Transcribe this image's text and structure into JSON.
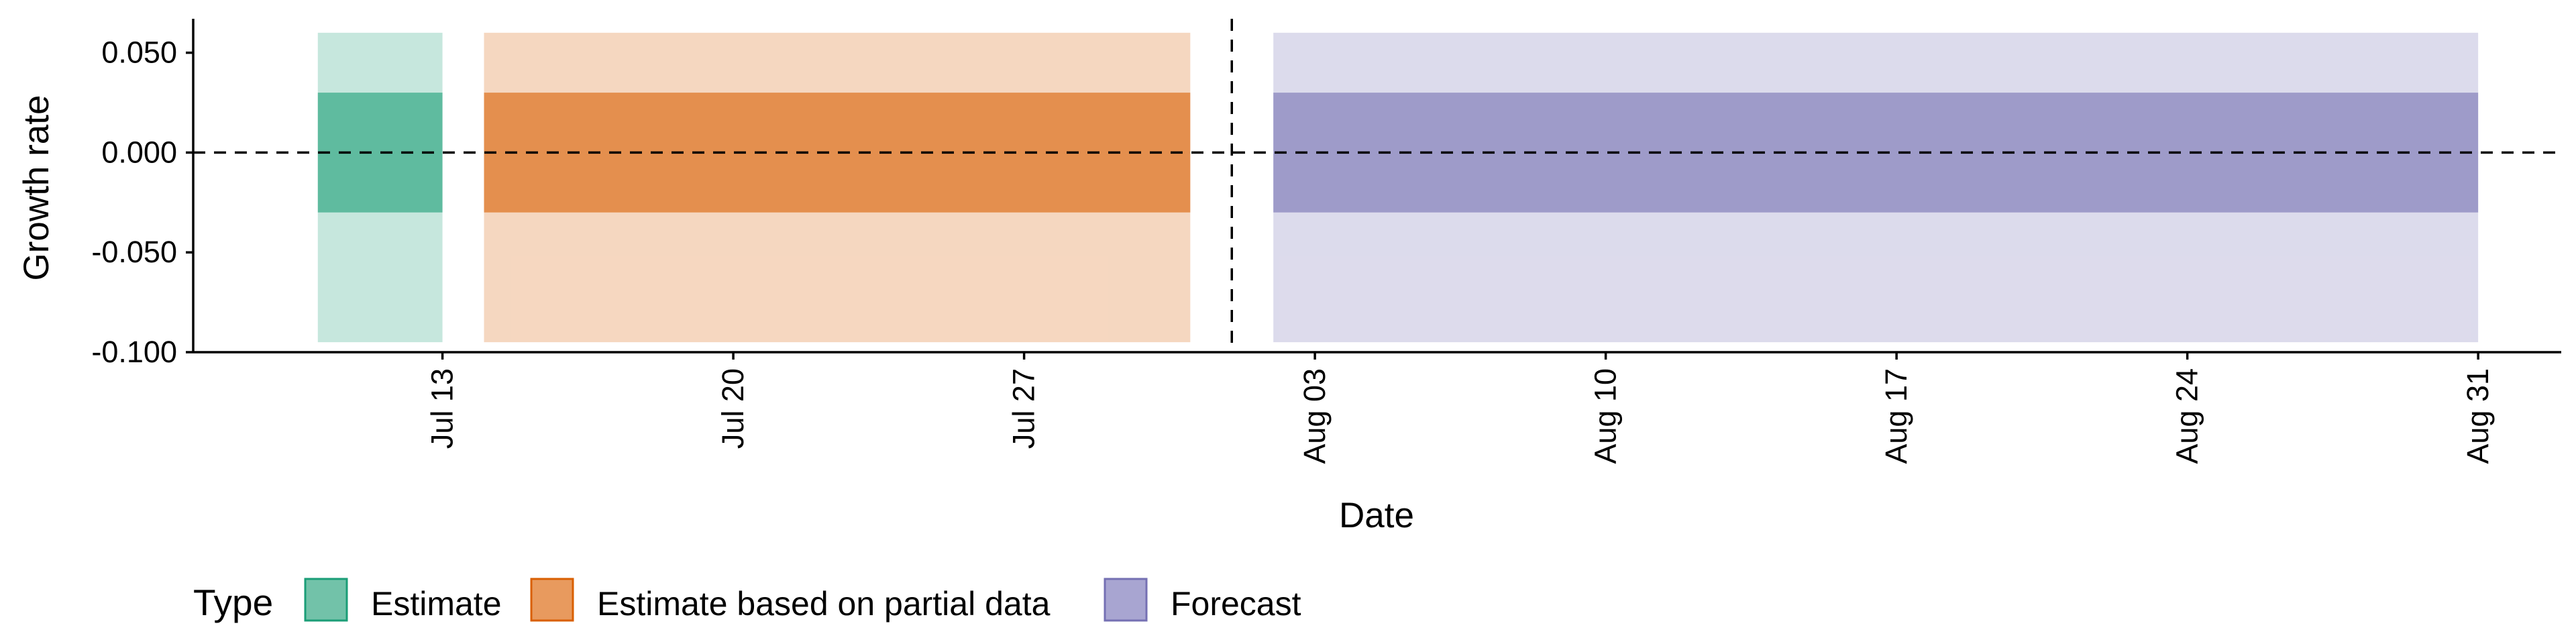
{
  "chart_data": {
    "type": "area",
    "xlabel": "Date",
    "ylabel": "Growth rate",
    "x_tick_labels": [
      "Jul 13",
      "Jul 20",
      "Jul 27",
      "Aug 03",
      "Aug 10",
      "Aug 17",
      "Aug 24",
      "Aug 31"
    ],
    "x_ticks": [
      "2020-07-13",
      "2020-07-20",
      "2020-07-27",
      "2020-08-03",
      "2020-08-10",
      "2020-08-17",
      "2020-08-24",
      "2020-08-31"
    ],
    "y_tick_labels": [
      "0.050",
      "0.000",
      "-0.050",
      "-0.100"
    ],
    "y_ticks": [
      0.05,
      0.0,
      -0.05,
      -0.1
    ],
    "xlim": [
      "2020-07-07",
      "2020-09-02"
    ],
    "ylim": [
      -0.1,
      0.067
    ],
    "grid": false,
    "reference_lines": {
      "horizontal_y": 0.0,
      "vertical_x": "2020-08-01",
      "style": "dashed"
    },
    "series": [
      {
        "name": "Estimate",
        "color": "#1b9e77",
        "x_start": "2020-07-10",
        "x_end": "2020-07-13",
        "outer_interval": [
          -0.095,
          0.06
        ],
        "inner_interval": [
          -0.03,
          0.03
        ]
      },
      {
        "name": "Estimate based on partial data",
        "color": "#d95f02",
        "x_start": "2020-07-14",
        "x_end": "2020-07-31",
        "outer_interval": [
          -0.095,
          0.06
        ],
        "inner_interval": [
          -0.03,
          0.03
        ]
      },
      {
        "name": "Forecast",
        "color": "#7570b3",
        "x_start": "2020-08-02",
        "x_end": "2020-08-31",
        "outer_interval": [
          -0.095,
          0.06
        ],
        "inner_interval": [
          -0.03,
          0.03
        ]
      }
    ],
    "legend": {
      "title": "Type",
      "position": "bottom",
      "entries": [
        "Estimate",
        "Estimate based on partial data",
        "Forecast"
      ]
    }
  }
}
